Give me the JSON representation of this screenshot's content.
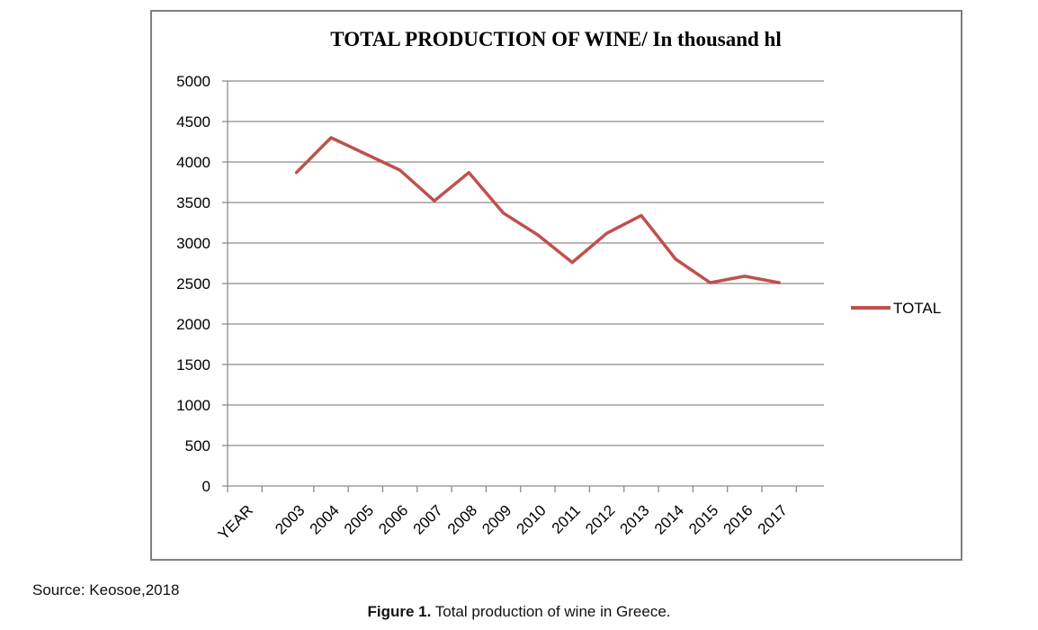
{
  "chart_data": {
    "type": "line",
    "title": "TOTAL PRODUCTION OF WINE/ In thousand hl",
    "categories": [
      "YEAR",
      "2003",
      "2004",
      "2005",
      "2006",
      "2007",
      "2008",
      "2009",
      "2010",
      "2011",
      "2012",
      "2013",
      "2014",
      "2015",
      "2016",
      "2017"
    ],
    "y_ticks": [
      "0",
      "500",
      "1000",
      "1500",
      "2000",
      "2500",
      "3000",
      "3500",
      "4000",
      "4500",
      "5000"
    ],
    "ylim": [
      0,
      5000
    ],
    "grid": "horizontal",
    "legend_position": "right",
    "series": [
      {
        "name": "TOTAL",
        "color": "#c0504d",
        "x": [
          "2003",
          "2004",
          "2005",
          "2006",
          "2007",
          "2008",
          "2009",
          "2010",
          "2011",
          "2012",
          "2013",
          "2014",
          "2015",
          "2016",
          "2017"
        ],
        "values": [
          3870,
          4300,
          4100,
          3900,
          3520,
          3870,
          3370,
          3100,
          2760,
          3120,
          3340,
          2800,
          2510,
          2590,
          2510
        ]
      }
    ]
  },
  "source_note": "Source: Keosoe,2018",
  "caption": {
    "label": "Figure 1.",
    "text": " Total production of wine in Greece."
  }
}
